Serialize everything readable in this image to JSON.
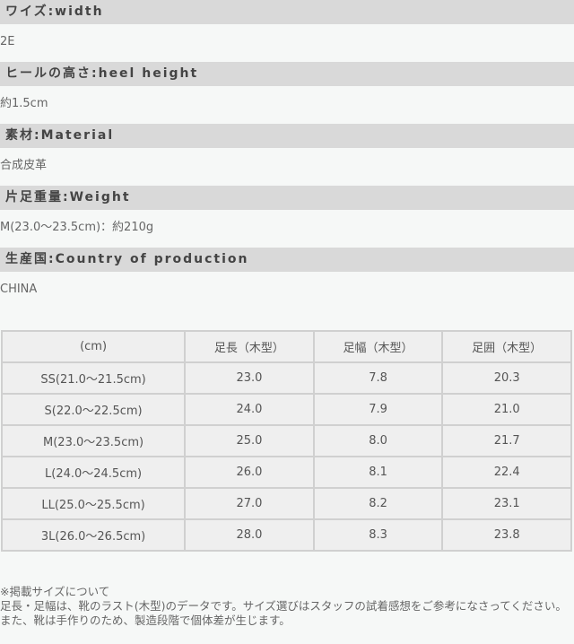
{
  "specs": [
    {
      "label": "ワイズ:width",
      "value": "2E"
    },
    {
      "label": "ヒールの高さ:heel height",
      "value": "約1.5cm"
    },
    {
      "label": "素材:Material",
      "value": "合成皮革"
    },
    {
      "label": "片足重量:Weight",
      "value": "M(23.0〜23.5cm)：約210g"
    },
    {
      "label": "生産国:Country of production",
      "value": "CHINA"
    }
  ],
  "table": {
    "headers": [
      "(cm)",
      "足長（木型）",
      "足幅（木型）",
      "足囲（木型）"
    ],
    "rows": [
      [
        "SS(21.0〜21.5cm)",
        "23.0",
        "7.8",
        "20.3"
      ],
      [
        "S(22.0〜22.5cm)",
        "24.0",
        "7.9",
        "21.0"
      ],
      [
        "M(23.0〜23.5cm)",
        "25.0",
        "8.0",
        "21.7"
      ],
      [
        "L(24.0〜24.5cm)",
        "26.0",
        "8.1",
        "22.4"
      ],
      [
        "LL(25.0〜25.5cm)",
        "27.0",
        "8.2",
        "23.1"
      ],
      [
        "3L(26.0〜26.5cm)",
        "28.0",
        "8.3",
        "23.8"
      ]
    ]
  },
  "note": {
    "title": "※掲載サイズについて",
    "body": "足長・足幅は、靴のラスト(木型)のデータです。サイズ選びはスタッフの試着感想をご参考になさってください。また、靴は手作りのため、製造段階で個体差が生じます。"
  }
}
